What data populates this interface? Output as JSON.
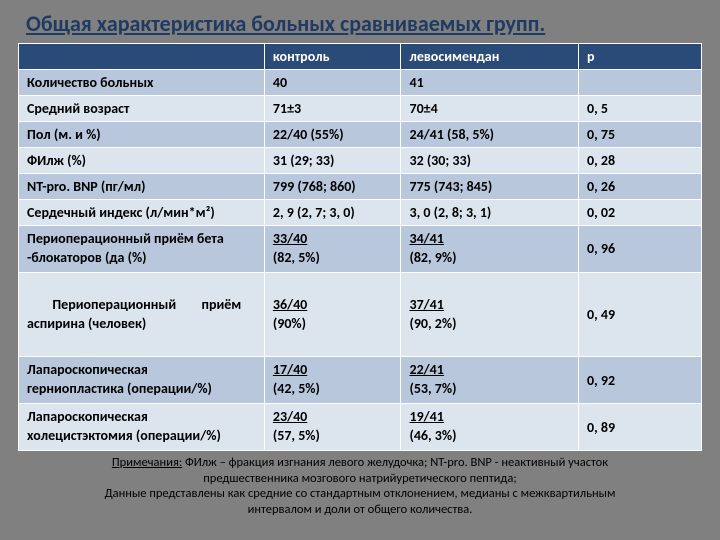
{
  "title": "Общая характеристика больных сравниваемых групп.",
  "headers": {
    "c0": "",
    "c1": "контроль",
    "c2": "левосимендан",
    "c3": "р"
  },
  "rows": {
    "r0": {
      "label": "Количество больных",
      "c1": "40",
      "c2": "41",
      "c3": ""
    },
    "r1": {
      "label": "Средний возраст",
      "c1": "71±3",
      "c2": "70±4",
      "c3": "0, 5"
    },
    "r2": {
      "label": "Пол (м. и %)",
      "c1": "22/40 (55%)",
      "c2": "24/41 (58, 5%)",
      "c3": "0, 75"
    },
    "r3": {
      "label": "ФИлж (%)",
      "c1": "31 (29; 33)",
      "c2": "32 (30; 33)",
      "c3": "0, 28"
    },
    "r4": {
      "label": "NT-pro. BNP (пг/мл)",
      "c1": "799 (768; 860)",
      "c2": "775 (743; 845)",
      "c3": "0, 26"
    },
    "r5": {
      "label": "Сердечный индекс (л/мин*м²)",
      "c1": "2, 9 (2, 7; 3, 0)",
      "c2": "3, 0 (2, 8; 3, 1)",
      "c3": "0, 02"
    },
    "r6": {
      "label_l1": "Периоперационный приём бета",
      "label_l2": "-блокаторов (да (%)",
      "c1_l1": "33/40",
      "c1_l2": "(82, 5%)",
      "c2_l1": "34/41",
      "c2_l2": "(82, 9%)",
      "c3": "0, 96"
    },
    "r7": {
      "label_l1": "Периоперационный        приём",
      "label_l2": "аспирина (человек)",
      "c1_l1": "36/40",
      "c1_l2": "(90%)",
      "c2_l1": "37/41",
      "c2_l2": "(90, 2%)",
      "c3": "0, 49"
    },
    "r8": {
      "label_l1": "Лапароскопическая",
      "label_l2": "герниопластика (операции/%)",
      "c1_l1": "17/40",
      "c1_l2": "(42, 5%)",
      "c2_l1": "22/41",
      "c2_l2": "(53, 7%)",
      "c3": "0, 92"
    },
    "r9": {
      "label_l1": "Лапароскопическая",
      "label_l2": "холецистэктомия (операции/%)",
      "c1_l1": "23/40",
      "c1_l2": "(57, 5%)",
      "c2_l1": "19/41",
      "c2_l2": "(46, 3%)",
      "c3": "0, 89"
    }
  },
  "footnote": {
    "label": "Примечания:",
    "line1": " ФИлж – фракция изгнания левого желудочка; NT-pro. BNP - неактивный участок",
    "line2": "предшественника мозгового натрийуретического пептида;",
    "line3": "Данные представлены как средние со стандартным отклонением, медианы с межквартильным",
    "line4": "интервалом и доли от общего количества."
  },
  "colors": {
    "title": "#1f3a63",
    "header_bg": "#2a4a78",
    "row_dark": "#b8c7db",
    "row_light": "#dce4ee",
    "background": "#808080"
  }
}
